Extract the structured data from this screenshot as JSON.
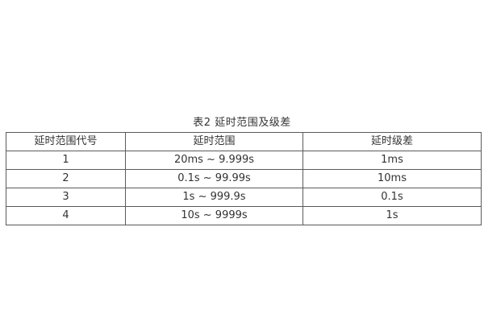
{
  "caption": "表2 延时范围及级差",
  "table": {
    "headers": [
      "延时范围代号",
      "延时范围",
      "延时级差"
    ],
    "rows": [
      [
        "1",
        "20ms ~ 9.999s",
        "1ms"
      ],
      [
        "2",
        "0.1s ~ 99.99s",
        "10ms"
      ],
      [
        "3",
        "1s ~ 999.9s",
        "0.1s"
      ],
      [
        "4",
        "10s ~ 9999s",
        "1s"
      ]
    ]
  },
  "colors": {
    "border": "#5a5a5a",
    "text": "#333333",
    "background": "#ffffff"
  }
}
